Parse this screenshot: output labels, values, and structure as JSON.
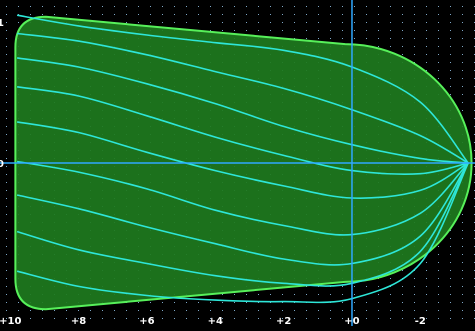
{
  "chart_data": {
    "type": "area",
    "title": "",
    "xlabel": "",
    "ylabel": "",
    "xlim": [
      10.3,
      -3.6
    ],
    "ylim": [
      -1.07,
      1.07
    ],
    "x_ticks": [
      "+10",
      "+8",
      "+6",
      "+4",
      "+2",
      "+0",
      "-2"
    ],
    "x_tick_values": [
      10,
      8,
      6,
      4,
      2,
      0,
      -2
    ],
    "y_axis_label_fragments": [
      "1",
      "0"
    ],
    "grid": true,
    "axis_lines": {
      "x": 0,
      "y": 0
    },
    "colors": {
      "background": "#000000",
      "fill": "#1e7a1e",
      "outline": "#57f05a",
      "curves": "#2ee6d8",
      "axes": "#2ea8ff",
      "grid_dots": "#7fa8c8",
      "tick_text": "#ffffff"
    },
    "region": {
      "left_x": 9.85,
      "right_x": -3.5,
      "top_y_at_left": 0.96,
      "top_y_at_nose_start": 0.78,
      "nose_start_x": 0.2,
      "corner_radius_y": 0.2
    },
    "series": [
      {
        "values": [
          [
            9.8,
            0.97
          ],
          [
            8.0,
            0.9
          ],
          [
            6.0,
            0.84
          ],
          [
            4.0,
            0.79
          ],
          [
            2.0,
            0.74
          ],
          [
            0.0,
            0.63
          ],
          [
            -2.0,
            0.4
          ],
          [
            -3.4,
            0.0
          ]
        ]
      },
      {
        "values": [
          [
            9.8,
            0.85
          ],
          [
            8.0,
            0.8
          ],
          [
            6.0,
            0.71
          ],
          [
            4.0,
            0.6
          ],
          [
            2.0,
            0.49
          ],
          [
            0.0,
            0.35
          ],
          [
            -2.0,
            0.18
          ],
          [
            -3.4,
            0.0
          ]
        ]
      },
      {
        "values": [
          [
            9.8,
            0.69
          ],
          [
            8.0,
            0.63
          ],
          [
            6.0,
            0.52
          ],
          [
            4.0,
            0.39
          ],
          [
            2.0,
            0.24
          ],
          [
            0.0,
            0.12
          ],
          [
            -2.0,
            0.03
          ],
          [
            -3.4,
            0.0
          ]
        ]
      },
      {
        "values": [
          [
            9.8,
            0.5
          ],
          [
            8.0,
            0.44
          ],
          [
            6.0,
            0.31
          ],
          [
            4.0,
            0.17
          ],
          [
            2.0,
            0.05
          ],
          [
            0.0,
            -0.05
          ],
          [
            -2.0,
            -0.07
          ],
          [
            -3.4,
            0.0
          ]
        ]
      },
      {
        "values": [
          [
            9.8,
            0.27
          ],
          [
            8.0,
            0.2
          ],
          [
            6.0,
            0.07
          ],
          [
            4.0,
            -0.05
          ],
          [
            2.0,
            -0.15
          ],
          [
            0.0,
            -0.23
          ],
          [
            -2.0,
            -0.18
          ],
          [
            -3.4,
            0.0
          ]
        ]
      },
      {
        "values": [
          [
            9.8,
            0.01
          ],
          [
            8.0,
            -0.06
          ],
          [
            6.0,
            -0.17
          ],
          [
            4.0,
            -0.31
          ],
          [
            2.0,
            -0.41
          ],
          [
            0.0,
            -0.47
          ],
          [
            -2.0,
            -0.33
          ],
          [
            -3.4,
            0.0
          ]
        ]
      },
      {
        "values": [
          [
            9.8,
            -0.21
          ],
          [
            8.0,
            -0.3
          ],
          [
            6.0,
            -0.42
          ],
          [
            4.0,
            -0.53
          ],
          [
            2.0,
            -0.63
          ],
          [
            0.0,
            -0.66
          ],
          [
            -2.0,
            -0.48
          ],
          [
            -3.4,
            0.0
          ]
        ]
      },
      {
        "values": [
          [
            9.8,
            -0.45
          ],
          [
            8.0,
            -0.57
          ],
          [
            6.0,
            -0.66
          ],
          [
            4.0,
            -0.74
          ],
          [
            2.0,
            -0.79
          ],
          [
            0.0,
            -0.79
          ],
          [
            -2.0,
            -0.58
          ],
          [
            -3.4,
            0.0
          ]
        ]
      },
      {
        "values": [
          [
            9.8,
            -0.71
          ],
          [
            8.0,
            -0.81
          ],
          [
            6.0,
            -0.87
          ],
          [
            4.0,
            -0.9
          ],
          [
            2.0,
            -0.91
          ],
          [
            0.0,
            -0.89
          ],
          [
            -2.0,
            -0.66
          ],
          [
            -3.4,
            0.0
          ]
        ]
      }
    ]
  }
}
